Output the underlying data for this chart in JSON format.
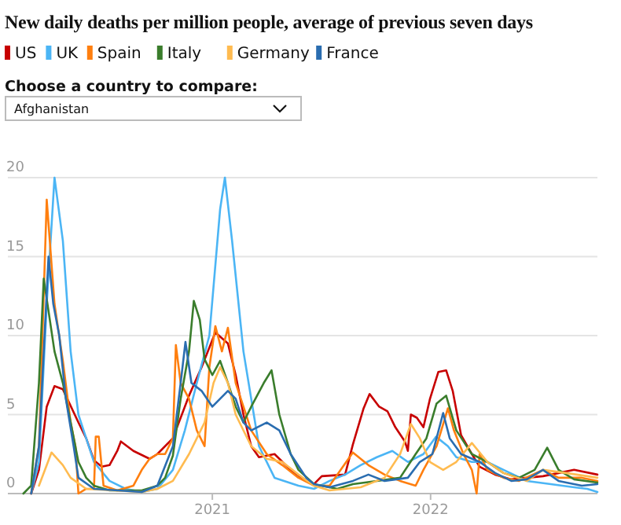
{
  "chart_data": {
    "type": "line",
    "title": "New daily deaths per million people, average of previous seven days",
    "annotations": [
      "Choose a country to compare:",
      "Afghanistan"
    ],
    "legend": "top",
    "grid": "y",
    "xlim": [
      "2020-01-25",
      "2022-10-07"
    ],
    "xticks": [
      "2021",
      "2022"
    ],
    "ylim": [
      0,
      20
    ],
    "yticks": [
      0,
      5,
      10,
      15,
      20
    ],
    "series": [
      {
        "name": "US",
        "color": "#c70000",
        "x": [
          "2020-03-04",
          "2020-03-17",
          "2020-03-30",
          "2020-04-12",
          "2020-04-26",
          "2020-05-22",
          "2020-06-04",
          "2020-06-17",
          "2020-06-30",
          "2020-07-13",
          "2020-07-26",
          "2020-08-01",
          "2020-08-22",
          "2020-09-18",
          "2020-10-01",
          "2020-10-27",
          "2020-11-23",
          "2020-12-14",
          "2021-01-06",
          "2021-01-27",
          "2021-02-09",
          "2021-02-22",
          "2021-03-07",
          "2021-03-20",
          "2021-04-15",
          "2021-05-12",
          "2021-06-07",
          "2021-06-20",
          "2021-07-03",
          "2021-08-11",
          "2021-08-24",
          "2021-09-11",
          "2021-09-21",
          "2021-10-07",
          "2021-10-21",
          "2021-11-03",
          "2021-11-19",
          "2021-11-24",
          "2021-11-29",
          "2021-12-09",
          "2021-12-20",
          "2021-12-31",
          "2022-01-14",
          "2022-01-27",
          "2022-02-07",
          "2022-02-21",
          "2022-03-11",
          "2022-03-24",
          "2022-04-19",
          "2022-05-16",
          "2022-06-11",
          "2022-07-08",
          "2022-08-03",
          "2022-08-29",
          "2022-10-07"
        ],
        "values": [
          0,
          1.5,
          5.5,
          6.8,
          6.6,
          4.5,
          3.5,
          2.1,
          1.7,
          1.8,
          2.7,
          3.3,
          2.7,
          2.2,
          2.5,
          3.5,
          6.2,
          8,
          10.2,
          9.5,
          7.5,
          5,
          3,
          2.3,
          2.5,
          1.5,
          0.8,
          0.6,
          1.1,
          1.2,
          3.1,
          5.4,
          6.3,
          5.5,
          5.2,
          4.2,
          3.3,
          2.7,
          5,
          4.8,
          4.2,
          6,
          7.7,
          7.8,
          6.5,
          3.7,
          2.5,
          1.7,
          1.2,
          0.9,
          1,
          1.1,
          1.3,
          1.5,
          1.2
        ]
      },
      {
        "name": "UK",
        "color": "#4bb5f5",
        "x": [
          "2020-03-04",
          "2020-03-17",
          "2020-03-30",
          "2020-04-12",
          "2020-04-26",
          "2020-05-09",
          "2020-05-22",
          "2020-06-17",
          "2020-07-13",
          "2020-08-09",
          "2020-09-05",
          "2020-10-01",
          "2020-10-27",
          "2020-11-16",
          "2020-12-06",
          "2020-12-27",
          "2021-01-14",
          "2021-01-22",
          "2021-02-03",
          "2021-02-22",
          "2021-03-20",
          "2021-04-15",
          "2021-05-25",
          "2021-06-20",
          "2021-07-16",
          "2021-08-11",
          "2021-09-06",
          "2021-10-03",
          "2021-10-29",
          "2021-11-24",
          "2021-12-20",
          "2022-01-10",
          "2022-01-30",
          "2022-02-13",
          "2022-03-11",
          "2022-04-06",
          "2022-05-03",
          "2022-06-11",
          "2022-07-21",
          "2022-08-29",
          "2022-09-20",
          "2022-10-07"
        ],
        "values": [
          0,
          2,
          12,
          20,
          16,
          9,
          5,
          2,
          0.8,
          0.3,
          0.1,
          0.3,
          1.5,
          4,
          7,
          10,
          18,
          20,
          16,
          9,
          3,
          1,
          0.5,
          0.3,
          0.8,
          1.2,
          1.8,
          2.3,
          2.7,
          2,
          2.5,
          3.6,
          3,
          2.3,
          2,
          2,
          1.5,
          0.8,
          0.6,
          0.4,
          0.3,
          0.1
        ]
      },
      {
        "name": "Spain",
        "color": "#ff7f0f",
        "x": [
          "2020-03-04",
          "2020-03-17",
          "2020-03-30",
          "2020-04-12",
          "2020-04-26",
          "2020-05-09",
          "2020-05-17",
          "2020-05-22",
          "2020-06-04",
          "2020-06-17",
          "2020-06-20",
          "2020-06-25",
          "2020-07-03",
          "2020-07-26",
          "2020-08-22",
          "2020-09-05",
          "2020-09-18",
          "2020-10-01",
          "2020-10-14",
          "2020-10-27",
          "2020-11-01",
          "2020-11-09",
          "2020-11-23",
          "2020-12-06",
          "2020-12-19",
          "2020-12-27",
          "2021-01-06",
          "2021-01-17",
          "2021-01-27",
          "2021-02-09",
          "2021-02-22",
          "2021-03-07",
          "2021-04-02",
          "2021-04-28",
          "2021-05-25",
          "2021-06-20",
          "2021-07-16",
          "2021-08-24",
          "2021-09-19",
          "2021-10-16",
          "2021-11-11",
          "2021-12-07",
          "2021-12-20",
          "2022-01-11",
          "2022-01-30",
          "2022-02-09",
          "2022-02-25",
          "2022-03-11",
          "2022-03-19",
          "2022-03-24",
          "2022-04-06",
          "2022-05-03",
          "2022-05-29",
          "2022-07-08",
          "2022-08-03",
          "2022-09-11",
          "2022-10-07"
        ],
        "values": [
          0,
          3,
          18.6,
          12,
          8.4,
          4.5,
          3,
          0,
          0.3,
          0.3,
          3.6,
          3.6,
          0.5,
          0.2,
          0.5,
          1.5,
          2.2,
          2.5,
          2.5,
          3.5,
          9.4,
          7,
          6,
          4,
          3,
          8,
          10.6,
          9,
          10.5,
          7,
          5.5,
          4,
          2.5,
          1.8,
          1,
          0.5,
          0.5,
          2.6,
          1.8,
          1.2,
          0.8,
          0.5,
          1.5,
          3,
          5.4,
          4,
          2.5,
          1.5,
          0,
          2.5,
          1.5,
          1,
          0.8,
          1.5,
          1,
          1,
          0.8
        ]
      },
      {
        "name": "Italy",
        "color": "#3a7d2c",
        "x": [
          "2020-02-20",
          "2020-03-04",
          "2020-03-17",
          "2020-03-25",
          "2020-04-12",
          "2020-04-26",
          "2020-05-09",
          "2020-05-22",
          "2020-06-04",
          "2020-06-17",
          "2020-07-13",
          "2020-09-05",
          "2020-10-01",
          "2020-10-14",
          "2020-10-27",
          "2020-11-09",
          "2020-11-23",
          "2020-12-01",
          "2020-12-11",
          "2020-12-19",
          "2021-01-01",
          "2021-01-14",
          "2021-01-27",
          "2021-02-09",
          "2021-02-22",
          "2021-03-07",
          "2021-03-28",
          "2021-04-10",
          "2021-04-23",
          "2021-05-12",
          "2021-05-25",
          "2021-06-20",
          "2021-07-03",
          "2021-07-29",
          "2021-08-24",
          "2021-10-03",
          "2021-11-11",
          "2021-12-07",
          "2021-12-25",
          "2022-01-11",
          "2022-01-27",
          "2022-02-13",
          "2022-03-11",
          "2022-04-06",
          "2022-05-03",
          "2022-05-29",
          "2022-06-24",
          "2022-07-15",
          "2022-08-03",
          "2022-08-29",
          "2022-10-07"
        ],
        "values": [
          0,
          0.5,
          7,
          13.6,
          9,
          7,
          4.5,
          2,
          1,
          0.5,
          0.2,
          0.2,
          0.5,
          1,
          2.4,
          6,
          9,
          12.2,
          11,
          8.5,
          7.5,
          8.4,
          7,
          5.5,
          4.5,
          5.5,
          7,
          7.8,
          5,
          2.5,
          1.5,
          0.6,
          0.5,
          0.3,
          0.6,
          0.8,
          1,
          2.5,
          3.5,
          5.7,
          6.2,
          4,
          2.5,
          2,
          1.3,
          1,
          1.5,
          2.9,
          1.5,
          0.9,
          0.7
        ]
      },
      {
        "name": "Germany",
        "color": "#ffbb50",
        "x": [
          "2020-03-17",
          "2020-04-07",
          "2020-04-26",
          "2020-05-09",
          "2020-06-04",
          "2020-09-05",
          "2020-10-01",
          "2020-10-27",
          "2020-11-23",
          "2020-12-19",
          "2021-01-03",
          "2021-01-14",
          "2021-01-27",
          "2021-02-09",
          "2021-03-07",
          "2021-04-02",
          "2021-04-28",
          "2021-05-25",
          "2021-06-20",
          "2021-07-16",
          "2021-09-06",
          "2021-10-16",
          "2021-11-11",
          "2021-11-29",
          "2021-12-14",
          "2021-12-31",
          "2022-01-22",
          "2022-02-13",
          "2022-03-11",
          "2022-04-06",
          "2022-05-03",
          "2022-06-11",
          "2022-07-08",
          "2022-08-16",
          "2022-10-07"
        ],
        "values": [
          0.5,
          2.6,
          1.8,
          1,
          0.3,
          0.1,
          0.3,
          0.8,
          2.5,
          4.5,
          7,
          8,
          7,
          5,
          3,
          2.2,
          2,
          1.2,
          0.5,
          0.2,
          0.4,
          1,
          2.5,
          4.4,
          3.5,
          2,
          1.5,
          2,
          3.2,
          2,
          1.3,
          0.8,
          1.5,
          1.3,
          1
        ]
      },
      {
        "name": "France",
        "color": "#2a6db0",
        "x": [
          "2020-03-04",
          "2020-03-17",
          "2020-04-02",
          "2020-04-10",
          "2020-04-20",
          "2020-05-01",
          "2020-05-14",
          "2020-05-22",
          "2020-06-17",
          "2020-09-05",
          "2020-10-01",
          "2020-10-27",
          "2020-11-09",
          "2020-11-17",
          "2020-11-27",
          "2020-12-14",
          "2021-01-01",
          "2021-01-14",
          "2021-01-27",
          "2021-02-09",
          "2021-02-22",
          "2021-03-07",
          "2021-04-02",
          "2021-04-23",
          "2021-05-12",
          "2021-06-07",
          "2021-06-20",
          "2021-07-16",
          "2021-08-24",
          "2021-09-19",
          "2021-10-16",
          "2021-11-24",
          "2021-12-14",
          "2022-01-04",
          "2022-01-22",
          "2022-02-02",
          "2022-02-21",
          "2022-03-24",
          "2022-04-19",
          "2022-05-16",
          "2022-06-11",
          "2022-07-08",
          "2022-08-03",
          "2022-09-11",
          "2022-10-07"
        ],
        "values": [
          0,
          3,
          15,
          12,
          10,
          6,
          3,
          1,
          0.3,
          0.1,
          0.5,
          3,
          7,
          9.6,
          7,
          6.5,
          5.5,
          6,
          6.5,
          6,
          4.5,
          4,
          4.5,
          4,
          2.5,
          1,
          0.6,
          0.4,
          0.8,
          1.2,
          0.8,
          1,
          2,
          2.5,
          5.1,
          3.5,
          2.5,
          2,
          1.3,
          0.8,
          0.9,
          1.5,
          0.8,
          0.5,
          0.6
        ]
      }
    ]
  }
}
